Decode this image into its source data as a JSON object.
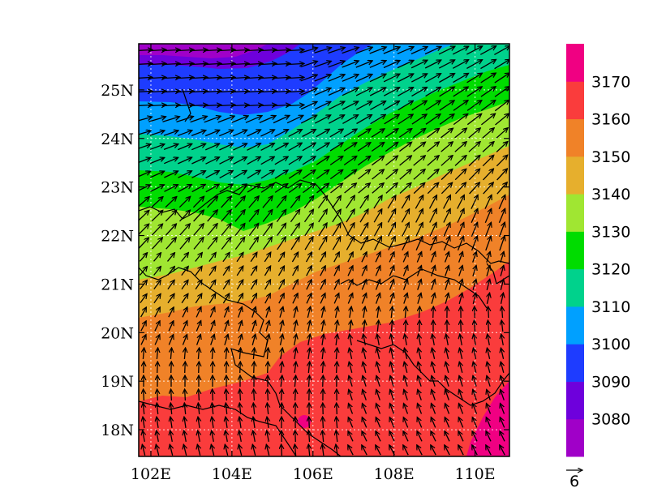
{
  "map": {
    "lat_ticks": [
      "18N",
      "19N",
      "20N",
      "21N",
      "22N",
      "23N",
      "24N",
      "25N"
    ],
    "lon_ticks": [
      "102E",
      "104E",
      "106E",
      "108E",
      "110E"
    ],
    "lat_values": [
      18,
      19,
      20,
      21,
      22,
      23,
      24,
      25
    ],
    "lon_values": [
      102,
      104,
      106,
      108,
      110
    ],
    "extent": {
      "lon_min": 101.7,
      "lon_max": 110.85,
      "lat_min": 17.45,
      "lat_max": 25.95
    },
    "gridlines": true
  },
  "colorbar": {
    "labels": [
      "3080",
      "3090",
      "3100",
      "3110",
      "3120",
      "3130",
      "3140",
      "3150",
      "3160",
      "3170"
    ],
    "colors": [
      "#a000c8",
      "#6e00dc",
      "#1e3cff",
      "#00a0ff",
      "#00d28c",
      "#00dc00",
      "#a0e632",
      "#e6af2d",
      "#f08228",
      "#fa3c3c",
      "#f00082"
    ]
  },
  "vector_reference": {
    "label": "6"
  }
}
